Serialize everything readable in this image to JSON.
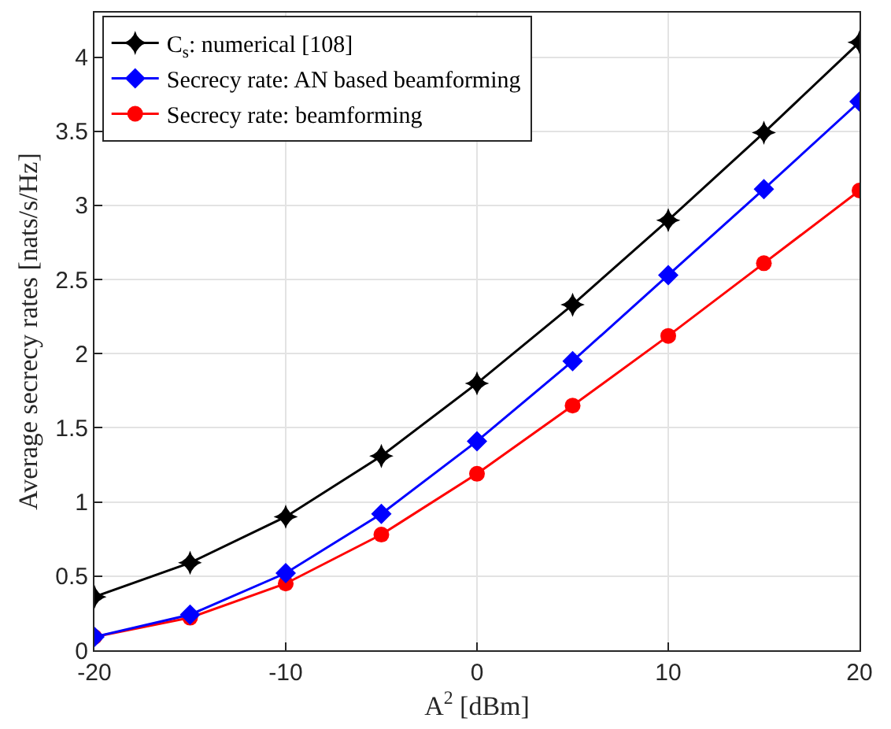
{
  "chart_data": {
    "type": "line",
    "xlabel": "A$^{2}$ [dBm]",
    "ylabel": "Average secrecy rates [nats/s/Hz]",
    "x": [
      -20,
      -15,
      -10,
      -5,
      0,
      5,
      10,
      15,
      20
    ],
    "series": [
      {
        "name": "C$_{s}$: numerical [108]",
        "color": "#000000",
        "marker": "star",
        "values": [
          0.36,
          0.59,
          0.9,
          1.31,
          1.8,
          2.33,
          2.9,
          3.49,
          4.1
        ]
      },
      {
        "name": "Secrecy rate: AN based beamforming",
        "color": "#0000ff",
        "marker": "diamond",
        "values": [
          0.09,
          0.24,
          0.52,
          0.92,
          1.41,
          1.95,
          2.53,
          3.11,
          3.7
        ]
      },
      {
        "name": "Secrecy rate: beamforming",
        "color": "#ff0000",
        "marker": "circle",
        "values": [
          0.09,
          0.22,
          0.45,
          0.78,
          1.19,
          1.65,
          2.12,
          2.61,
          3.1
        ]
      }
    ],
    "xlim": [
      -20,
      20
    ],
    "xticks": [
      -20,
      -10,
      0,
      10,
      20
    ],
    "ylim": [
      0,
      4.3
    ],
    "yticks": [
      0,
      0.5,
      1,
      1.5,
      2,
      2.5,
      3,
      3.5,
      4
    ],
    "grid": true,
    "legend": "top left",
    "line_style": "solid"
  }
}
